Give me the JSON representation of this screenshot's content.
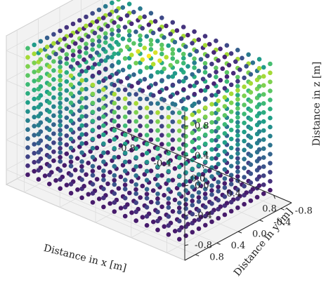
{
  "chart_data": {
    "type": "scatter",
    "projection": "3d",
    "colormap": "viridis",
    "color_by": "z",
    "grid": true,
    "xlabel": "Distance in x [m]",
    "ylabel": "Distance in y [m]",
    "zlabel": "Distance in z [m]",
    "xlim": [
      -1.0,
      1.0
    ],
    "ylim": [
      -1.0,
      1.0
    ],
    "zlim": [
      -1.0,
      1.0
    ],
    "xticks": [
      "-0.8",
      "-0.4",
      "0.0",
      "0.4",
      "0.8"
    ],
    "yticks": [
      "-0.8",
      "-0.4",
      "0.0",
      "0.4",
      "0.8"
    ],
    "zticks": [
      "-0.8",
      "-0.4",
      "0.0",
      "0.4",
      "0.8"
    ],
    "xtick_values": [
      -0.8,
      -0.4,
      0.0,
      0.4,
      0.8
    ],
    "ytick_values": [
      -0.8,
      -0.4,
      0.0,
      0.4,
      0.8
    ],
    "ztick_values": [
      -0.8,
      -0.4,
      0.0,
      0.4,
      0.8
    ],
    "points": {
      "shape": "cube surface",
      "grid_points_per_edge": 15,
      "range": [
        -0.85,
        0.85
      ]
    },
    "colors": {
      "pane_fill": "#f2f2f2",
      "pane_edge": "#cfcfcf",
      "grid": "#dcdcdc",
      "axis": "#222222"
    }
  }
}
